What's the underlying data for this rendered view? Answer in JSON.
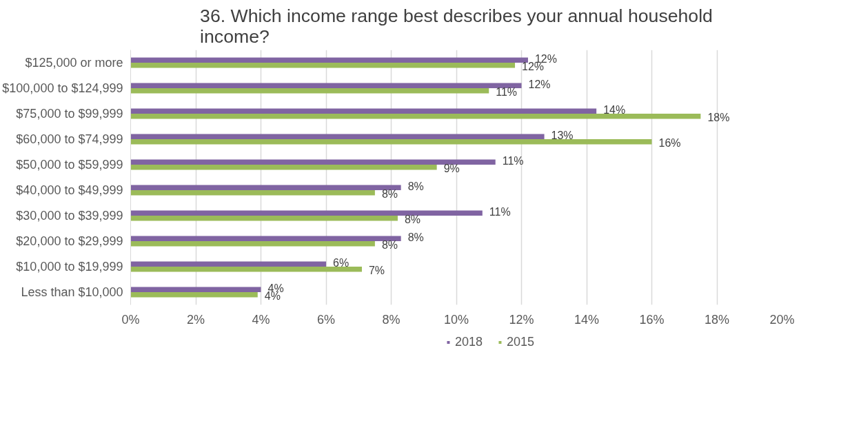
{
  "chart_data": {
    "type": "bar",
    "orientation": "horizontal",
    "title": "36. Which income range best describes your annual household income?",
    "categories": [
      "$125,000 or more",
      "$100,000 to $124,999",
      "$75,000 to $99,999",
      "$60,000 to $74,999",
      "$50,000 to $59,999",
      "$40,000 to $49,999",
      "$30,000 to $39,999",
      "$20,000 to $29,999",
      "$10,000 to $19,999",
      "Less than $10,000"
    ],
    "series": [
      {
        "name": "2018",
        "color": "#8064a2",
        "values": [
          12.2,
          12.0,
          14.3,
          12.7,
          11.2,
          8.3,
          10.8,
          8.3,
          6.0,
          4.0
        ],
        "value_labels": [
          "12%",
          "12%",
          "14%",
          "13%",
          "11%",
          "8%",
          "11%",
          "8%",
          "6%",
          "4%"
        ]
      },
      {
        "name": "2015",
        "color": "#9bbb59",
        "values": [
          11.8,
          11.0,
          17.5,
          16.0,
          9.4,
          7.5,
          8.2,
          7.5,
          7.1,
          3.9
        ],
        "value_labels": [
          "12%",
          "11%",
          "18%",
          "16%",
          "9%",
          "8%",
          "8%",
          "8%",
          "7%",
          "4%"
        ]
      }
    ],
    "xlim": [
      0,
      20
    ],
    "xticks": [
      {
        "value": 0,
        "label": "0%"
      },
      {
        "value": 2,
        "label": "2%"
      },
      {
        "value": 4,
        "label": "4%"
      },
      {
        "value": 6,
        "label": "6%"
      },
      {
        "value": 8,
        "label": "8%"
      },
      {
        "value": 10,
        "label": "10%"
      },
      {
        "value": 12,
        "label": "12%"
      },
      {
        "value": 14,
        "label": "14%"
      },
      {
        "value": 16,
        "label": "16%"
      },
      {
        "value": 18,
        "label": "18%"
      },
      {
        "value": 20,
        "label": "20%"
      }
    ],
    "grid": "x",
    "legend": "bottom"
  }
}
